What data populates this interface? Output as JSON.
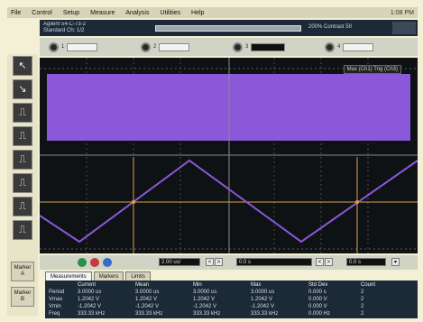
{
  "menu": {
    "items": [
      "File",
      "Control",
      "Setup",
      "Measure",
      "Analysis",
      "Utilities",
      "Help"
    ],
    "right": "1:08 PM"
  },
  "status": {
    "left_line1": "Agilent 54-C-73-2",
    "left_line2": "Standard Ch: 1/2",
    "right": "200% Contrast 50"
  },
  "channels": [
    {
      "label": "1",
      "value": ""
    },
    {
      "label": "2",
      "value": ""
    },
    {
      "label": "3",
      "value": ""
    },
    {
      "label": "4",
      "value": ""
    }
  ],
  "display": {
    "scale_label": "Max (Ch1)  Trig (Ch3)",
    "colors": {
      "trace": "#8a58d8",
      "grid": "#6e6e6e",
      "marker": "#d8a24a",
      "bg": "#0e1214"
    }
  },
  "tools": {
    "icons": [
      "pointer-icon",
      "zoom-icon",
      "edge-icon",
      "pulse-icon",
      "runt-icon",
      "glitch-icon",
      "pattern-icon",
      "state-icon"
    ],
    "glyphs": [
      "↖",
      "↘",
      "⎍",
      "⎍",
      "⎍",
      "⎍",
      "⎍",
      "⎍"
    ],
    "bottom": [
      {
        "line1": "Marker",
        "line2": "A"
      },
      {
        "line1": "Marker",
        "line2": "B"
      }
    ]
  },
  "controls": {
    "timebase": "2.00 us/",
    "delay": "0.0 s",
    "trigger": "0.0 s"
  },
  "tabs": [
    "Measurements",
    "Markers",
    "Limits"
  ],
  "measurements": {
    "headers": [
      "",
      "Current",
      "Mean",
      "Min",
      "Max",
      "Std Dev",
      "Count"
    ],
    "rows": [
      [
        "Period",
        "3.0000 us",
        "3.0000 us",
        "3.0000 us",
        "3.0000 us",
        "0.000 s",
        "2"
      ],
      [
        "Vmax",
        "1.2042 V",
        "1.2042 V",
        "1.2042 V",
        "1.2042 V",
        "0.000 V",
        "2"
      ],
      [
        "Vmin",
        "-1.2042 V",
        "-1.2042 V",
        "-1.2042 V",
        "-1.2042 V",
        "0.000 V",
        "2"
      ],
      [
        "Freq",
        "333.33 kHz",
        "333.33 kHz",
        "333.33 kHz",
        "333.33 kHz",
        "0.000 Hz",
        "2"
      ]
    ]
  }
}
